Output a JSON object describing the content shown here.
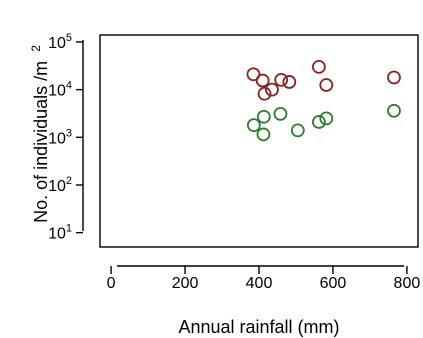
{
  "chart_data": {
    "type": "scatter",
    "title": "",
    "xlabel": "Annual rainfall (mm)",
    "ylabel": "No. of individuals /m",
    "ylabel_superscript": "2",
    "xlim": [
      -30,
      830
    ],
    "ylim": [
      5,
      140000
    ],
    "yscale": "log",
    "grid": false,
    "legend": "none",
    "x_ticks": [
      {
        "value": 0,
        "label": "0"
      },
      {
        "value": 200,
        "label": "200"
      },
      {
        "value": 400,
        "label": "400"
      },
      {
        "value": 600,
        "label": "600"
      },
      {
        "value": 800,
        "label": "800"
      }
    ],
    "y_ticks": [
      {
        "value": 10,
        "base": "10",
        "exponent": "1"
      },
      {
        "value": 100,
        "base": "10",
        "exponent": "2"
      },
      {
        "value": 1000,
        "base": "10",
        "exponent": "3"
      },
      {
        "value": 10000,
        "base": "10",
        "exponent": "4"
      },
      {
        "value": 100000,
        "base": "10",
        "exponent": "5"
      }
    ],
    "series": [
      {
        "color": "#8b2323",
        "marker": "open-circle",
        "points": [
          {
            "x": 385,
            "y": 21000
          },
          {
            "x": 410,
            "y": 15500
          },
          {
            "x": 415,
            "y": 8200
          },
          {
            "x": 435,
            "y": 10000
          },
          {
            "x": 460,
            "y": 16000
          },
          {
            "x": 482,
            "y": 14500
          },
          {
            "x": 562,
            "y": 30000
          },
          {
            "x": 582,
            "y": 12500
          },
          {
            "x": 765,
            "y": 18000
          }
        ]
      },
      {
        "color": "#2e7d2e",
        "marker": "open-circle",
        "points": [
          {
            "x": 386,
            "y": 1800
          },
          {
            "x": 413,
            "y": 2700
          },
          {
            "x": 412,
            "y": 1150
          },
          {
            "x": 458,
            "y": 3100
          },
          {
            "x": 505,
            "y": 1400
          },
          {
            "x": 562,
            "y": 2100
          },
          {
            "x": 582,
            "y": 2500
          },
          {
            "x": 765,
            "y": 3600
          }
        ]
      }
    ]
  }
}
